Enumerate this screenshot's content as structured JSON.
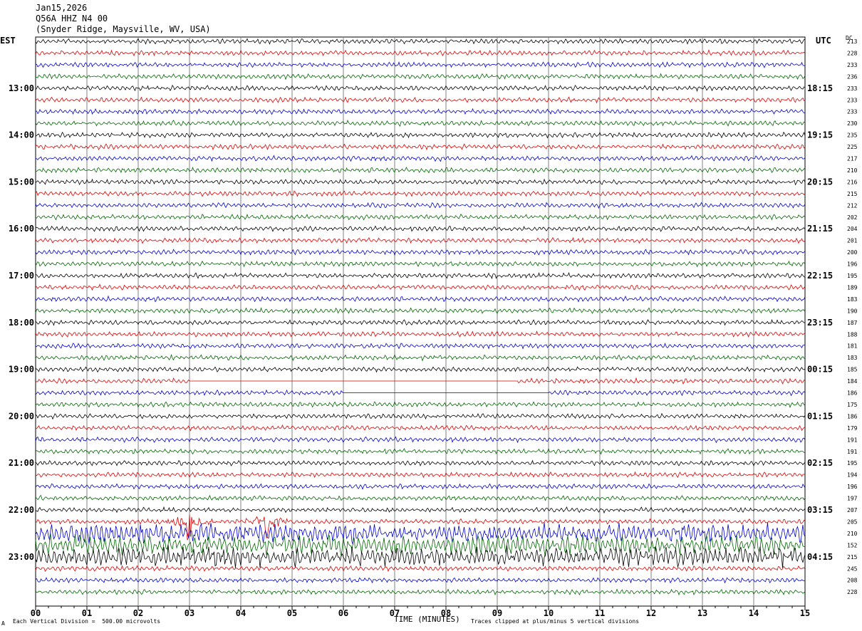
{
  "header": {
    "date": "Jan15,2026",
    "station": "Q56A HHZ N4 00",
    "location": "(Snyder Ridge, Maysville, WV, USA)"
  },
  "left_zone": "EST",
  "right_zone": "UTC",
  "dc_label": "DC",
  "footer": {
    "scale_note": "Each Vertical Division =  500.00 microvolts",
    "clip_note": "Traces clipped at plus/minus 5 vertical divisions",
    "corner_mark": "A"
  },
  "chart_data": {
    "type": "line",
    "xlabel": "TIME (MINUTES)",
    "xlim": [
      0,
      15
    ],
    "x_ticks": [
      "00",
      "01",
      "02",
      "03",
      "04",
      "05",
      "06",
      "07",
      "08",
      "09",
      "10",
      "11",
      "12",
      "13",
      "14",
      "15"
    ],
    "left_hour_labels": [
      "13:00",
      "14:00",
      "15:00",
      "16:00",
      "17:00",
      "18:00",
      "19:00",
      "20:00",
      "21:00",
      "22:00",
      "23:00"
    ],
    "right_hour_labels": [
      "18:15",
      "19:15",
      "20:15",
      "21:15",
      "22:15",
      "23:15",
      "00:15",
      "01:15",
      "02:15",
      "03:15",
      "04:15"
    ],
    "trace_colors": [
      "#000000",
      "#dd0000",
      "#0000cc",
      "#006600"
    ],
    "dc_offsets": [
      213,
      228,
      233,
      236,
      233,
      233,
      233,
      230,
      235,
      225,
      217,
      210,
      216,
      215,
      212,
      202,
      204,
      201,
      200,
      196,
      195,
      189,
      183,
      190,
      187,
      188,
      181,
      183,
      185,
      184,
      186,
      175,
      186,
      179,
      191,
      191,
      195,
      194,
      196,
      197,
      207,
      205,
      210,
      152,
      215,
      245,
      208,
      228
    ],
    "events": [
      {
        "row": 41,
        "minute": 3.0,
        "amplitude": "large"
      },
      {
        "row": 41,
        "minute": 4.5,
        "amplitude": "large"
      }
    ],
    "gaps": [
      {
        "row": 29,
        "from_minute": 3.0,
        "to_minute": 9.4
      },
      {
        "row": 30,
        "from_minute": 6.0,
        "to_minute": 10.0
      }
    ]
  }
}
